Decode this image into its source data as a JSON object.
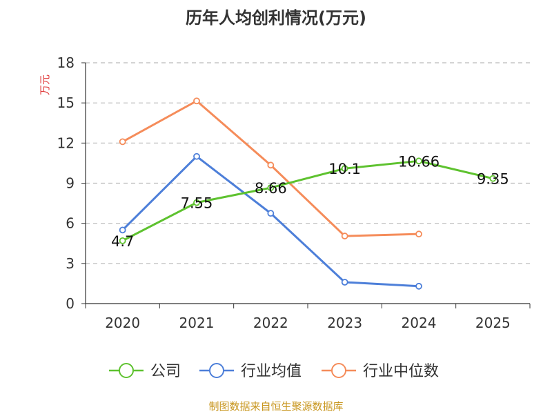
{
  "chart_data": {
    "type": "line",
    "title": "历年人均创利情况(万元)",
    "ylabel": "万元",
    "xlabel": "",
    "ylim": [
      0,
      18
    ],
    "yticks": [
      0,
      3,
      6,
      9,
      12,
      15,
      18
    ],
    "categories": [
      "2020",
      "2021",
      "2022",
      "2023",
      "2024",
      "2025"
    ],
    "grid": true,
    "legend_position": "bottom",
    "series": [
      {
        "name": "公司",
        "color": "#5ec22f",
        "values": [
          4.7,
          7.55,
          8.66,
          10.1,
          10.66,
          9.35
        ],
        "labels": [
          "4.7",
          "7.55",
          "8.66",
          "10.1",
          "10.66",
          "9.35"
        ]
      },
      {
        "name": "行业均值",
        "color": "#4d7fd9",
        "values": [
          5.5,
          11.0,
          6.75,
          1.6,
          1.3,
          null
        ]
      },
      {
        "name": "行业中位数",
        "color": "#f58c5a",
        "values": [
          12.1,
          15.15,
          10.35,
          5.05,
          5.2,
          null
        ]
      }
    ]
  },
  "source": "制图数据来自恒生聚源数据库"
}
